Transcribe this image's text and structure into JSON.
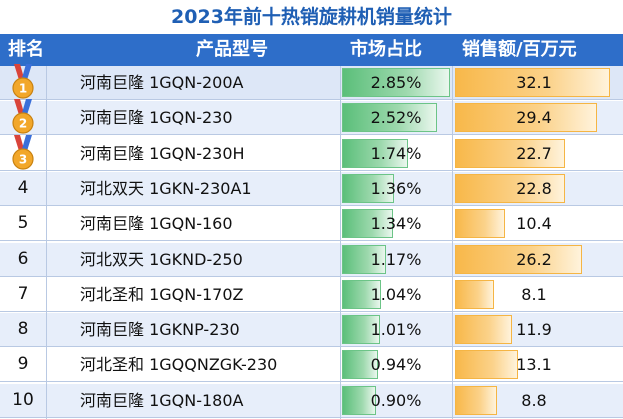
{
  "title": "2023年前十热销旋耕机销量统计",
  "headers": {
    "rank": "排名",
    "model": "产品型号",
    "share": "市场占比",
    "sales": "销售额/百万元"
  },
  "colors": {
    "header_bg": "#2e6ec9",
    "title_text": "#1f5fb4",
    "share_bar": "#5bbf7a",
    "sales_bar": "#f8b84a",
    "medal": "#f2a72a"
  },
  "medal_icons": [
    "gold-medal-icon",
    "silver-medal-icon",
    "bronze-medal-icon"
  ],
  "medal_numbers": [
    "1",
    "2",
    "3"
  ],
  "rows": [
    {
      "rank": "1",
      "model": "河南巨隆 1GQN-200A",
      "share_label": "2.85%",
      "sales_label": "32.1"
    },
    {
      "rank": "2",
      "model": "河南巨隆 1GQN-230",
      "share_label": "2.52%",
      "sales_label": "29.4"
    },
    {
      "rank": "3",
      "model": "河南巨隆 1GQN-230H",
      "share_label": "1.74%",
      "sales_label": "22.7"
    },
    {
      "rank": "4",
      "model": "河北双天 1GKN-230A1",
      "share_label": "1.36%",
      "sales_label": "22.8"
    },
    {
      "rank": "5",
      "model": "河南巨隆 1GQN-160",
      "share_label": "1.34%",
      "sales_label": "10.4"
    },
    {
      "rank": "6",
      "model": "河北双天 1GKND-250",
      "share_label": "1.17%",
      "sales_label": "26.2"
    },
    {
      "rank": "7",
      "model": "河北圣和 1GQN-170Z",
      "share_label": "1.04%",
      "sales_label": "8.1"
    },
    {
      "rank": "8",
      "model": "河南巨隆 1GKNP-230",
      "share_label": "1.01%",
      "sales_label": "11.9"
    },
    {
      "rank": "9",
      "model": "河北圣和 1GQQNZGK-230",
      "share_label": "0.94%",
      "sales_label": "13.1"
    },
    {
      "rank": "10",
      "model": "河南巨隆 1GQN-180A",
      "share_label": "0.90%",
      "sales_label": "8.8"
    }
  ],
  "chart_data": {
    "type": "table",
    "title": "2023年前十热销旋耕机销量统计",
    "columns": [
      "排名",
      "产品型号",
      "市场占比",
      "销售额/百万元"
    ],
    "categories": [
      "河南巨隆 1GQN-200A",
      "河南巨隆 1GQN-230",
      "河南巨隆 1GQN-230H",
      "河北双天 1GKN-230A1",
      "河南巨隆 1GQN-160",
      "河北双天 1GKND-250",
      "河北圣和 1GQN-170Z",
      "河南巨隆 1GKNP-230",
      "河北圣和 1GQQNZGK-230",
      "河南巨隆 1GQN-180A"
    ],
    "series": [
      {
        "name": "市场占比 (%)",
        "values": [
          2.85,
          2.52,
          1.74,
          1.36,
          1.34,
          1.17,
          1.04,
          1.01,
          0.94,
          0.9
        ]
      },
      {
        "name": "销售额/百万元",
        "values": [
          32.1,
          29.4,
          22.7,
          22.8,
          10.4,
          26.2,
          8.1,
          11.9,
          13.1,
          8.8
        ]
      }
    ],
    "share_range": [
      0,
      2.85
    ],
    "sales_range": [
      0,
      32.1
    ]
  }
}
